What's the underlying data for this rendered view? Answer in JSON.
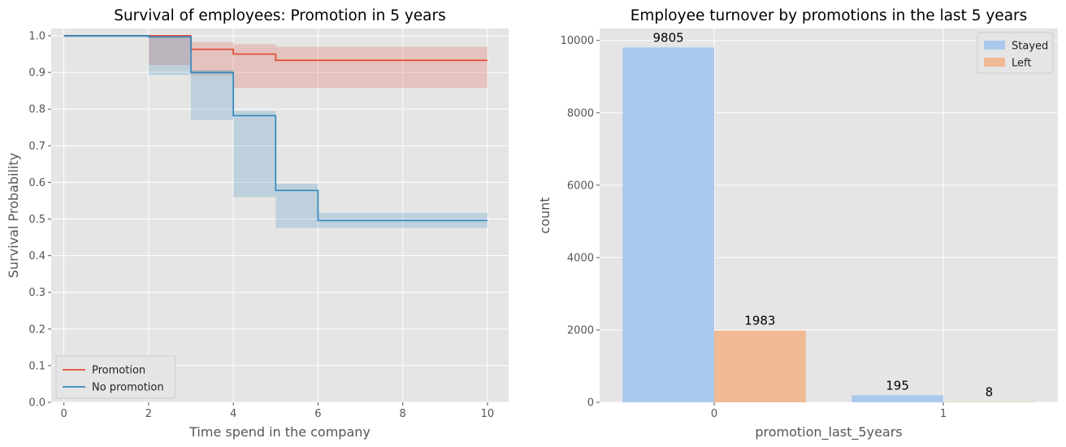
{
  "chart_data": [
    {
      "type": "line",
      "title": "Survival of employees: Promotion in 5 years",
      "xlabel": "Time spend in the company",
      "ylabel": "Survival Probability",
      "xlim": [
        -0.3,
        10.5
      ],
      "ylim": [
        0,
        1.02
      ],
      "xticks": [
        0,
        2,
        4,
        6,
        8,
        10
      ],
      "yticks": [
        0.0,
        0.1,
        0.2,
        0.3,
        0.4,
        0.5,
        0.6,
        0.7,
        0.8,
        0.9,
        1.0
      ],
      "ytick_labels": [
        "0.0",
        "0.1",
        "0.2",
        "0.3",
        "0.4",
        "0.5",
        "0.6",
        "0.7",
        "0.8",
        "0.9",
        "1.0"
      ],
      "grid": true,
      "legend_position": "lower-left",
      "series": [
        {
          "name": " Promotion",
          "color": "#e24a33",
          "step": true,
          "x": [
            0,
            2,
            3,
            4,
            5,
            10
          ],
          "y": [
            1.0,
            1.0,
            0.963,
            0.95,
            0.933,
            0.933
          ],
          "ci_lower": [
            1.0,
            1.0,
            0.92,
            0.893,
            0.858,
            0.858
          ],
          "ci_upper": [
            1.0,
            1.0,
            0.983,
            0.977,
            0.97,
            0.97
          ]
        },
        {
          "name": "No promotion",
          "color": "#348abd",
          "step": true,
          "x": [
            0,
            2,
            3,
            4,
            5,
            6,
            10
          ],
          "y": [
            1.0,
            0.997,
            0.9,
            0.782,
            0.578,
            0.496,
            0.496
          ],
          "ci_lower": [
            1.0,
            0.995,
            0.893,
            0.77,
            0.56,
            0.476,
            0.476
          ],
          "ci_upper": [
            1.0,
            0.999,
            0.907,
            0.795,
            0.597,
            0.517,
            0.517
          ]
        }
      ]
    },
    {
      "type": "bar",
      "title": "Employee turnover by promotions in the last 5 years",
      "xlabel": "promotion_last_5years",
      "ylabel": "count",
      "categories": [
        "0",
        "1"
      ],
      "ylim": [
        0,
        10330
      ],
      "yticks": [
        0,
        2000,
        4000,
        6000,
        8000,
        10000
      ],
      "grid": true,
      "legend_position": "top-right",
      "series": [
        {
          "name": "Stayed",
          "color": "#abc9ec",
          "values": [
            9805,
            195
          ]
        },
        {
          "name": "Left",
          "color": "#f1b994",
          "values": [
            1983,
            8
          ]
        }
      ]
    }
  ]
}
